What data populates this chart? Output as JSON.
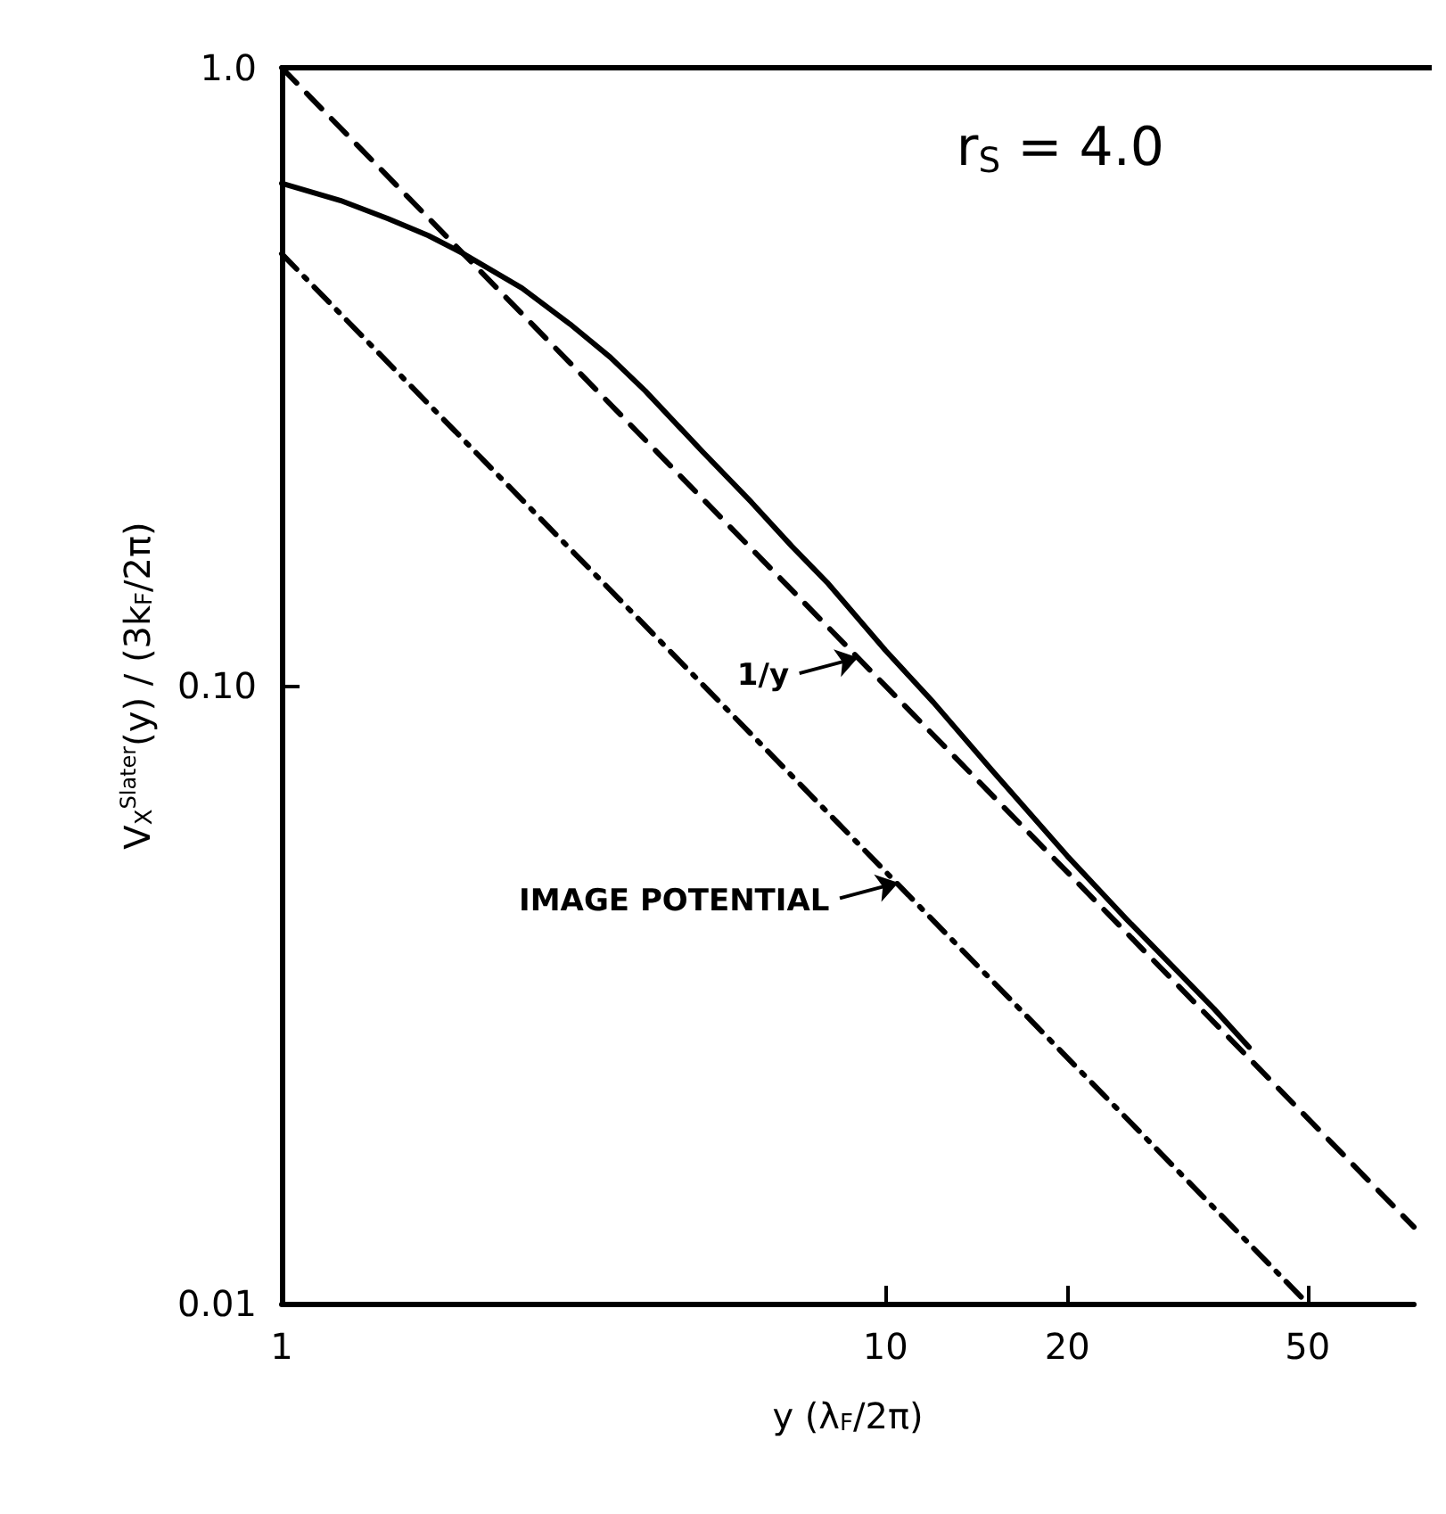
{
  "chart_data": {
    "type": "line",
    "xlabel": "y (λ$_{F}$/2π)",
    "ylabel": "V$_{X}$$^{Slater}$(y) / (3k$_{F}$/2π)",
    "log": "xy",
    "grid": false,
    "marker": "none",
    "xlim": [
      1,
      75
    ],
    "xticks": [
      1,
      10,
      20,
      50
    ],
    "ylim": [
      0.01,
      1
    ],
    "yticks": [
      0.01,
      {
        "value": 0.1,
        "label": "0.10"
      },
      {
        "value": 1,
        "label": "1.0"
      }
    ],
    "annotations": [
      "r$_{S}$ = 4.0",
      {
        "text": "1/y",
        "x": 9,
        "y": 0.111
      },
      {
        "text": "IMAGE POTENTIAL",
        "x": 10.5,
        "y": 0.048
      }
    ],
    "series": [
      {
        "color": "#000000",
        "line_style": "solid",
        "x": [
          1,
          1.25,
          1.5,
          1.75,
          2,
          2.5,
          3,
          3.5,
          4,
          5,
          6,
          7,
          8,
          10,
          12,
          15,
          20,
          25,
          30,
          35,
          40
        ],
        "values": [
          0.65,
          0.61,
          0.57,
          0.535,
          0.5,
          0.44,
          0.385,
          0.34,
          0.3,
          0.238,
          0.198,
          0.168,
          0.147,
          0.114,
          0.094,
          0.073,
          0.053,
          0.042,
          0.035,
          0.03,
          0.026
        ]
      },
      {
        "color": "#000000",
        "line_style": "dashed",
        "x": [
          1,
          75
        ],
        "values": [
          1,
          0.0133
        ]
      },
      {
        "color": "#000000",
        "line_style": "dashdot",
        "x": [
          1,
          50
        ],
        "values": [
          0.5,
          0.01
        ]
      }
    ]
  }
}
